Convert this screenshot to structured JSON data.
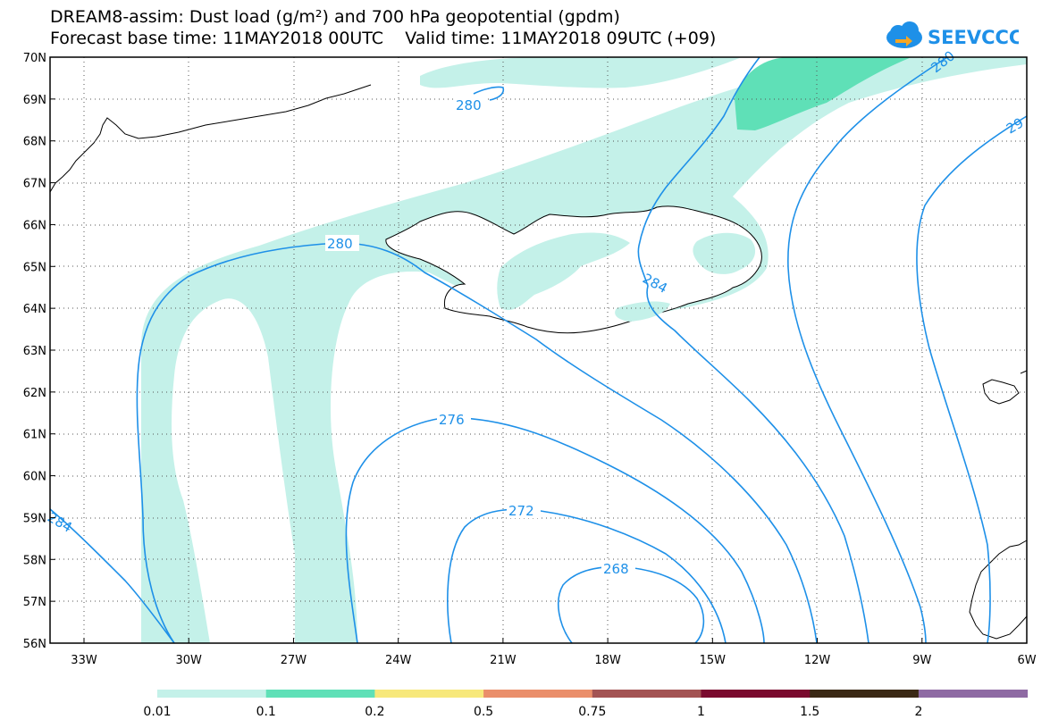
{
  "header": {
    "title_line_1": "DREAM8-assim: Dust load (g/m²) and 700 hPa geopotential (gpdm)",
    "title_line_2": "Forecast base time: 11MAY2018 00UTC    Valid time: 11MAY2018 09UTC (+09)"
  },
  "logo": {
    "text": "SEEVCCC",
    "color": "#1e90e8"
  },
  "axes": {
    "lat_labels": [
      "70N",
      "69N",
      "68N",
      "67N",
      "66N",
      "65N",
      "64N",
      "63N",
      "62N",
      "61N",
      "60N",
      "59N",
      "58N",
      "57N",
      "56N"
    ],
    "lon_labels": [
      "33W",
      "30W",
      "27W",
      "24W",
      "21W",
      "18W",
      "15W",
      "12W",
      "9W",
      "6W"
    ]
  },
  "contours": {
    "color": "#1e90e8",
    "labels": [
      "280",
      "280",
      "276",
      "272",
      "268",
      "284",
      "284",
      "280",
      "29"
    ]
  },
  "dust_colors": {
    "level_1": "#c4f1e9",
    "level_2": "#5fe0b7"
  },
  "legend": {
    "colors": [
      "#c4f1e9",
      "#5fe0b7",
      "#f7e87b",
      "#ea8e6a",
      "#a35353",
      "#7a0a2e",
      "#3a2814",
      "#8e6aa3"
    ],
    "labels": [
      "0.01",
      "0.1",
      "0.2",
      "0.5",
      "0.75",
      "1",
      "1.5",
      "2"
    ]
  }
}
